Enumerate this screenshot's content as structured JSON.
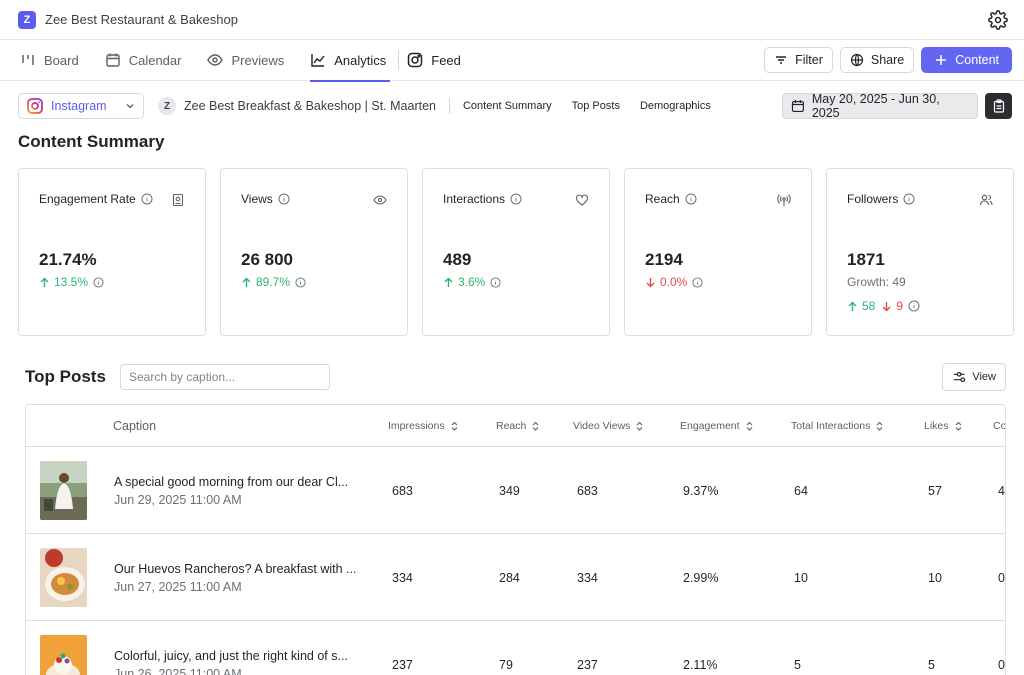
{
  "app": {
    "logo_letter": "Z",
    "title": "Zee Best Restaurant & Bakeshop"
  },
  "nav": {
    "tabs": [
      {
        "label": "Board",
        "icon": "board-icon"
      },
      {
        "label": "Calendar",
        "icon": "calendar-icon"
      },
      {
        "label": "Previews",
        "icon": "eye-icon"
      },
      {
        "label": "Analytics",
        "icon": "chart-line-icon",
        "active": true
      },
      {
        "label": "Feed",
        "icon": "instagram-icon"
      }
    ],
    "actions": {
      "filter": "Filter",
      "share": "Share",
      "content": "Content"
    }
  },
  "filters": {
    "platform": "Instagram",
    "account_initial": "Z",
    "account": "Zee Best Breakfast & Bakeshop | St. Maarten",
    "links": [
      "Content Summary",
      "Top Posts",
      "Demographics"
    ],
    "date_range": "May 20, 2025 - Jun 30, 2025"
  },
  "summary": {
    "title": "Content Summary",
    "cards": [
      {
        "label": "Engagement Rate",
        "value": "21.74%",
        "delta": "13.5%",
        "direction": "up",
        "icon": "badge-icon"
      },
      {
        "label": "Views",
        "value": "26 800",
        "delta": "89.7%",
        "direction": "up",
        "icon": "eye-icon"
      },
      {
        "label": "Interactions",
        "value": "489",
        "delta": "3.6%",
        "direction": "up",
        "icon": "heart-icon"
      },
      {
        "label": "Reach",
        "value": "2194",
        "delta": "0.0%",
        "direction": "down",
        "icon": "broadcast-icon"
      },
      {
        "label": "Followers",
        "value": "1871",
        "growth": "Growth: 49",
        "gained": "58",
        "lost": "9",
        "icon": "users-icon"
      }
    ]
  },
  "top_posts": {
    "title": "Top Posts",
    "search_placeholder": "Search by caption...",
    "view_label": "View",
    "columns": [
      "Caption",
      "Impressions",
      "Reach",
      "Video Views",
      "Engagement",
      "Total Interactions",
      "Likes",
      "Co"
    ],
    "rows": [
      {
        "caption": "A special good morning from our dear Cl...",
        "date": "Jun 29, 2025 11:00 AM",
        "impressions": "683",
        "reach": "349",
        "video_views": "683",
        "engagement": "9.37%",
        "total_interactions": "64",
        "likes": "57",
        "comments": "4"
      },
      {
        "caption": "Our Huevos Rancheros? A breakfast with ...",
        "date": "Jun 27, 2025 11:00 AM",
        "impressions": "334",
        "reach": "284",
        "video_views": "334",
        "engagement": "2.99%",
        "total_interactions": "10",
        "likes": "10",
        "comments": "0"
      },
      {
        "caption": "Colorful, juicy, and just the right kind of s...",
        "date": "Jun 26, 2025 11:00 AM",
        "impressions": "237",
        "reach": "79",
        "video_views": "237",
        "engagement": "2.11%",
        "total_interactions": "5",
        "likes": "5",
        "comments": "0"
      }
    ]
  },
  "colors": {
    "accent": "#6366f1",
    "up": "#2bb673",
    "down": "#e5484d"
  }
}
